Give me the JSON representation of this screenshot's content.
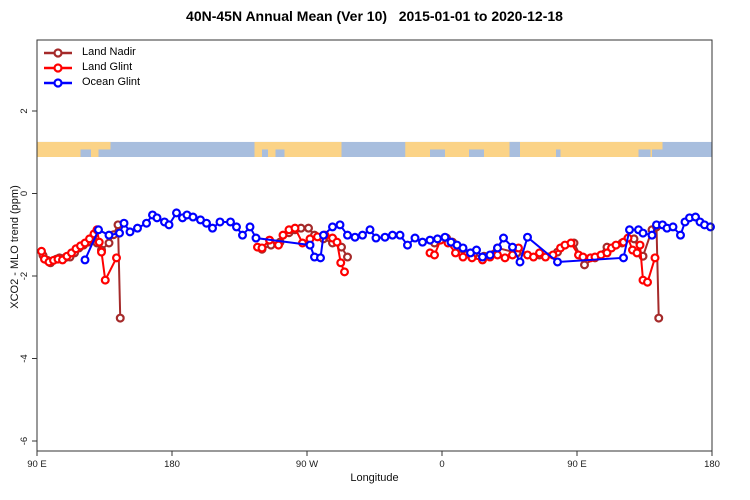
{
  "chart_data": {
    "type": "line",
    "title": "40N-45N Annual Mean (Ver 10)   2015-01-01 to 2020-12-18",
    "xlabel": "Longitude",
    "ylabel": "XCO2 - MLO trend (ppm)",
    "legend_position": "top-left",
    "x_axis": {
      "description": "longitude, plotted eastward starting at 90E (values below are cumulative degrees east of Greenwich)",
      "range": [
        90,
        540
      ],
      "ticks": [
        {
          "lon": 90,
          "label": "90 E"
        },
        {
          "lon": 180,
          "label": "180"
        },
        {
          "lon": 270,
          "label": "90 W"
        },
        {
          "lon": 360,
          "label": "0"
        },
        {
          "lon": 450,
          "label": "90 E"
        },
        {
          "lon": 540,
          "label": "180"
        }
      ]
    },
    "y_axis": {
      "range": [
        -6.35,
        3.72
      ],
      "ticks": [
        {
          "value": 2,
          "label": "2"
        },
        {
          "value": 0,
          "label": "0"
        },
        {
          "value": -2,
          "label": "-2"
        },
        {
          "value": -4,
          "label": "-4"
        },
        {
          "value": -6,
          "label": "-6"
        }
      ]
    },
    "land_ocean_strip": {
      "description": "land/ocean map strip for 40N-45N",
      "top_ppm": 1.25,
      "bottom_ppm": 0.885,
      "ocean_color": "#A8BEDE",
      "land_color": "#FBD387",
      "land_segments": [
        {
          "from": 90,
          "to": 122,
          "row": "full"
        },
        {
          "from": 122,
          "to": 139,
          "row": "top"
        },
        {
          "from": 126,
          "to": 131,
          "row": "bottom"
        },
        {
          "from": 235,
          "to": 293,
          "row": "full"
        },
        {
          "from": 335.5,
          "to": 500,
          "row": "full"
        },
        {
          "from": 500,
          "to": 507,
          "row": "top"
        }
      ],
      "ocean_patches": [
        {
          "from": 119,
          "to": 122,
          "row": "bottom"
        },
        {
          "from": 240,
          "to": 244,
          "row": "bottom"
        },
        {
          "from": 249,
          "to": 255,
          "row": "bottom"
        },
        {
          "from": 352,
          "to": 362,
          "row": "bottom"
        },
        {
          "from": 378,
          "to": 388,
          "row": "bottom"
        },
        {
          "from": 405,
          "to": 412,
          "row": "full"
        },
        {
          "from": 436,
          "to": 439,
          "row": "bottom"
        },
        {
          "from": 491,
          "to": 499,
          "row": "bottom"
        }
      ]
    },
    "series": [
      {
        "name": "Land Nadir",
        "color": "#A52A2A",
        "segments": [
          [
            [
              94,
              -1.5
            ],
            [
              97,
              -1.62
            ],
            [
              99,
              -1.68
            ],
            [
              103,
              -1.59
            ],
            [
              105,
              -1.56
            ],
            [
              109,
              -1.55
            ],
            [
              112,
              -1.54
            ],
            [
              115,
              -1.44
            ],
            [
              118,
              -1.32
            ],
            [
              121,
              -1.25
            ],
            [
              124,
              -1.18
            ],
            [
              127,
              -1.08
            ],
            [
              130,
              -1.2
            ],
            [
              133,
              -1.37
            ],
            [
              138,
              -1.2
            ],
            [
              141,
              -1.0
            ],
            [
              144,
              -0.76
            ],
            [
              145.5,
              -3.02
            ]
          ],
          [
            [
              240,
              -1.35
            ],
            [
              246,
              -1.25
            ],
            [
              252,
              -1.18
            ],
            [
              258,
              -0.95
            ],
            [
              262,
              -0.88
            ],
            [
              266,
              -0.84
            ],
            [
              271,
              -0.84
            ],
            [
              275,
              -1.01
            ],
            [
              281,
              -1.1
            ],
            [
              287,
              -1.2
            ],
            [
              293,
              -1.3
            ],
            [
              297,
              -1.54
            ]
          ],
          [
            [
              355,
              -1.2
            ],
            [
              363,
              -1.08
            ],
            [
              367,
              -1.18
            ],
            [
              374,
              -1.35
            ],
            [
              381,
              -1.49
            ],
            [
              388,
              -1.52
            ],
            [
              397,
              -1.32
            ],
            [
              410,
              -1.44
            ],
            [
              425,
              -1.49
            ],
            [
              437,
              -1.42
            ],
            [
              448,
              -1.2
            ],
            [
              455,
              -1.73
            ],
            [
              462,
              -1.56
            ],
            [
              470,
              -1.3
            ],
            [
              480,
              -1.2
            ],
            [
              488,
              -1.1
            ],
            [
              494,
              -1.52
            ],
            [
              500,
              -0.88
            ],
            [
              503,
              -0.81
            ],
            [
              504.5,
              -3.02
            ]
          ]
        ]
      },
      {
        "name": "Land Glint",
        "color": "#FF0000",
        "segments": [
          [
            [
              93,
              -1.4
            ],
            [
              95,
              -1.59
            ],
            [
              98,
              -1.66
            ],
            [
              101,
              -1.62
            ],
            [
              104,
              -1.59
            ],
            [
              107,
              -1.61
            ],
            [
              110,
              -1.52
            ],
            [
              113,
              -1.44
            ],
            [
              116,
              -1.34
            ],
            [
              119,
              -1.27
            ],
            [
              122,
              -1.2
            ],
            [
              125,
              -1.1
            ],
            [
              128,
              -0.98
            ],
            [
              130,
              -0.88
            ],
            [
              131.5,
              -1.18
            ],
            [
              133,
              -1.42
            ],
            [
              135.5,
              -2.1
            ],
            [
              143,
              -1.56
            ]
          ],
          [
            [
              237,
              -1.3
            ],
            [
              240,
              -1.32
            ],
            [
              245,
              -1.13
            ],
            [
              251,
              -1.25
            ],
            [
              254,
              -1.01
            ],
            [
              258,
              -0.88
            ],
            [
              262,
              -0.84
            ],
            [
              267,
              -1.2
            ],
            [
              272,
              -1.1
            ],
            [
              277,
              -1.05
            ],
            [
              282,
              -1.01
            ],
            [
              287,
              -1.08
            ],
            [
              290,
              -1.18
            ],
            [
              292.5,
              -1.68
            ],
            [
              295,
              -1.9
            ]
          ],
          [
            [
              352,
              -1.44
            ],
            [
              355,
              -1.49
            ],
            [
              359,
              -1.13
            ],
            [
              364,
              -1.2
            ],
            [
              369,
              -1.44
            ],
            [
              374,
              -1.54
            ],
            [
              380,
              -1.56
            ],
            [
              387,
              -1.61
            ],
            [
              392,
              -1.54
            ],
            [
              397,
              -1.49
            ],
            [
              402,
              -1.56
            ],
            [
              407,
              -1.49
            ],
            [
              411,
              -1.32
            ],
            [
              417,
              -1.49
            ],
            [
              421,
              -1.54
            ],
            [
              425,
              -1.44
            ],
            [
              429,
              -1.54
            ],
            [
              434,
              -1.49
            ],
            [
              439,
              -1.32
            ],
            [
              442,
              -1.25
            ],
            [
              446,
              -1.2
            ],
            [
              451,
              -1.49
            ],
            [
              454,
              -1.54
            ],
            [
              459,
              -1.56
            ],
            [
              462,
              -1.54
            ],
            [
              466,
              -1.49
            ],
            [
              470,
              -1.44
            ],
            [
              473,
              -1.32
            ],
            [
              476,
              -1.25
            ],
            [
              481,
              -1.18
            ],
            [
              484,
              -1.08
            ],
            [
              487,
              -1.37
            ],
            [
              490,
              -1.44
            ],
            [
              492,
              -1.25
            ],
            [
              494,
              -2.1
            ],
            [
              497,
              -2.15
            ],
            [
              502,
              -1.56
            ]
          ]
        ]
      },
      {
        "name": "Ocean Glint",
        "color": "#0000FF",
        "segments": [
          [
            [
              122,
              -1.61
            ],
            [
              131,
              -0.88
            ],
            [
              138,
              -1.01
            ],
            [
              145,
              -0.96
            ],
            [
              148,
              -0.72
            ],
            [
              152,
              -0.93
            ],
            [
              157,
              -0.84
            ],
            [
              163,
              -0.72
            ],
            [
              167,
              -0.52
            ],
            [
              170,
              -0.59
            ],
            [
              175,
              -0.69
            ],
            [
              178,
              -0.76
            ],
            [
              183,
              -0.47
            ],
            [
              187,
              -0.59
            ],
            [
              190,
              -0.52
            ],
            [
              194,
              -0.57
            ],
            [
              199,
              -0.64
            ],
            [
              203,
              -0.72
            ],
            [
              207,
              -0.84
            ],
            [
              212,
              -0.69
            ],
            [
              219,
              -0.69
            ],
            [
              223,
              -0.81
            ],
            [
              227,
              -1.01
            ],
            [
              232,
              -0.81
            ],
            [
              236,
              -1.08
            ],
            [
              272,
              -1.25
            ],
            [
              275,
              -1.54
            ],
            [
              279,
              -1.56
            ],
            [
              281,
              -1.01
            ],
            [
              287,
              -0.81
            ],
            [
              292,
              -0.76
            ],
            [
              297,
              -1.01
            ],
            [
              302,
              -1.06
            ],
            [
              307,
              -1.01
            ],
            [
              312,
              -0.88
            ],
            [
              316,
              -1.08
            ],
            [
              322,
              -1.06
            ],
            [
              327,
              -1.01
            ],
            [
              332,
              -1.01
            ],
            [
              337,
              -1.25
            ],
            [
              342,
              -1.08
            ],
            [
              347,
              -1.18
            ],
            [
              352,
              -1.13
            ],
            [
              357,
              -1.1
            ],
            [
              362,
              -1.06
            ],
            [
              366,
              -1.18
            ],
            [
              370,
              -1.25
            ],
            [
              374,
              -1.32
            ],
            [
              379,
              -1.44
            ],
            [
              383,
              -1.37
            ],
            [
              387,
              -1.54
            ],
            [
              392,
              -1.49
            ],
            [
              397,
              -1.32
            ],
            [
              401,
              -1.08
            ],
            [
              407,
              -1.3
            ],
            [
              412,
              -1.66
            ],
            [
              417,
              -1.06
            ],
            [
              437,
              -1.66
            ],
            [
              481,
              -1.56
            ],
            [
              485,
              -0.88
            ],
            [
              491,
              -0.88
            ],
            [
              494,
              -0.96
            ],
            [
              500,
              -1.01
            ],
            [
              503,
              -0.76
            ],
            [
              507,
              -0.76
            ],
            [
              510,
              -0.84
            ],
            [
              514,
              -0.81
            ],
            [
              519,
              -1.01
            ],
            [
              522,
              -0.69
            ],
            [
              525,
              -0.59
            ],
            [
              529,
              -0.57
            ],
            [
              532,
              -0.69
            ],
            [
              535,
              -0.76
            ],
            [
              539,
              -0.81
            ]
          ]
        ]
      }
    ]
  }
}
